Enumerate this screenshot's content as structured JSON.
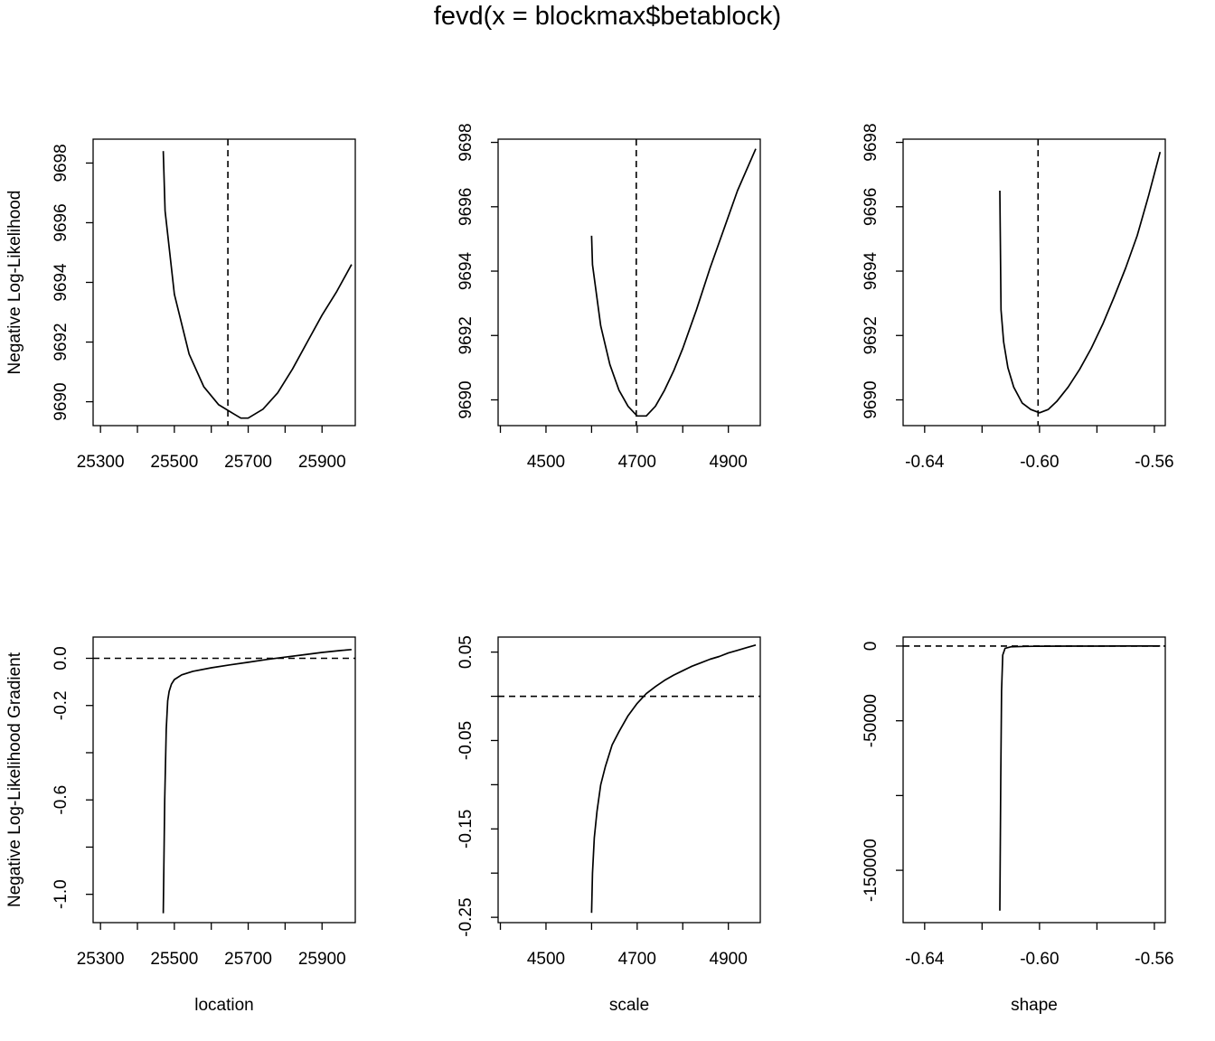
{
  "title": "fevd(x = blockmax$betablock)",
  "chart_data": [
    {
      "type": "line",
      "panel": "location-likelihood",
      "xlabel": "",
      "ylabel": "Negative Log-Likelihood",
      "xlim": [
        25280,
        25990
      ],
      "ylim": [
        9689.2,
        9698.8
      ],
      "xticks": [
        25300,
        25400,
        25500,
        25600,
        25700,
        25800,
        25900
      ],
      "xtick_labels": [
        "25300",
        "25500",
        "25700",
        "25900"
      ],
      "yticks": [
        9690,
        9692,
        9694,
        9696,
        9698
      ],
      "ytick_labels": [
        "9690",
        "9692",
        "9694",
        "9696",
        "9698"
      ],
      "series": [
        {
          "x": [
            25470,
            25475,
            25500,
            25540,
            25580,
            25620,
            25660,
            25680,
            25700,
            25740,
            25780,
            25820,
            25860,
            25900,
            25940,
            25980
          ],
          "y": [
            9698.4,
            9696.4,
            9693.6,
            9691.6,
            9690.5,
            9689.9,
            9689.6,
            9689.45,
            9689.45,
            9689.75,
            9690.3,
            9691.1,
            9692.0,
            9692.9,
            9693.7,
            9694.6
          ]
        }
      ],
      "reference": {
        "orientation": "vertical",
        "value": 25645,
        "style": "dashed"
      }
    },
    {
      "type": "line",
      "panel": "scale-likelihood",
      "xlabel": "",
      "ylabel": "",
      "xlim": [
        4395,
        4970
      ],
      "ylim": [
        9689.2,
        9698.1
      ],
      "xticks": [
        4400,
        4500,
        4600,
        4700,
        4800,
        4900
      ],
      "xtick_labels": [
        "4500",
        "4700",
        "4900"
      ],
      "yticks": [
        9690,
        9692,
        9694,
        9696,
        9698
      ],
      "ytick_labels": [
        "9690",
        "9692",
        "9694",
        "9696",
        "9698"
      ],
      "series": [
        {
          "x": [
            4600,
            4602,
            4620,
            4640,
            4660,
            4680,
            4700,
            4720,
            4740,
            4760,
            4780,
            4800,
            4830,
            4860,
            4890,
            4920,
            4960
          ],
          "y": [
            9695.1,
            9694.2,
            9692.3,
            9691.1,
            9690.3,
            9689.8,
            9689.5,
            9689.5,
            9689.8,
            9690.3,
            9690.9,
            9691.6,
            9692.8,
            9694.1,
            9695.3,
            9696.5,
            9697.8
          ]
        }
      ],
      "reference": {
        "orientation": "vertical",
        "value": 4698,
        "style": "dashed"
      }
    },
    {
      "type": "line",
      "panel": "shape-likelihood",
      "xlabel": "",
      "ylabel": "",
      "xlim": [
        -0.6475,
        -0.5562
      ],
      "ylim": [
        9689.2,
        9698.1
      ],
      "xticks": [
        -0.64,
        -0.62,
        -0.6,
        -0.58,
        -0.56
      ],
      "xtick_labels": [
        "-0.64",
        "-0.60",
        "-0.56"
      ],
      "yticks": [
        9690,
        9692,
        9694,
        9696,
        9698
      ],
      "ytick_labels": [
        "9690",
        "9692",
        "9694",
        "9696",
        "9698"
      ],
      "series": [
        {
          "x": [
            -0.6138,
            -0.6134,
            -0.6125,
            -0.611,
            -0.609,
            -0.606,
            -0.603,
            -0.6,
            -0.597,
            -0.594,
            -0.59,
            -0.586,
            -0.582,
            -0.578,
            -0.574,
            -0.57,
            -0.566,
            -0.562,
            -0.558
          ],
          "y": [
            9696.5,
            9692.8,
            9691.8,
            9691.0,
            9690.4,
            9689.9,
            9689.7,
            9689.6,
            9689.7,
            9689.95,
            9690.4,
            9690.95,
            9691.6,
            9692.35,
            9693.2,
            9694.1,
            9695.1,
            9696.35,
            9697.7
          ]
        }
      ],
      "reference": {
        "orientation": "vertical",
        "value": -0.6005,
        "style": "dashed"
      }
    },
    {
      "type": "line",
      "panel": "location-gradient",
      "xlabel": "location",
      "ylabel": "Negative Log-Likelihood Gradient",
      "xlim": [
        25280,
        25990
      ],
      "ylim": [
        -1.12,
        0.09
      ],
      "xticks": [
        25300,
        25400,
        25500,
        25600,
        25700,
        25800,
        25900
      ],
      "xtick_labels": [
        "25300",
        "25500",
        "25700",
        "25900"
      ],
      "yticks": [
        0.0,
        -0.2,
        -0.4,
        -0.6,
        -0.8,
        -1.0
      ],
      "ytick_labels": [
        "0.0",
        "-0.2",
        "-0.6",
        "-1.0"
      ],
      "series": [
        {
          "x": [
            25470,
            25474,
            25478,
            25482,
            25486,
            25492,
            25500,
            25520,
            25550,
            25600,
            25650,
            25700,
            25750,
            25800,
            25850,
            25900,
            25950,
            25980
          ],
          "y": [
            -1.08,
            -0.6,
            -0.3,
            -0.18,
            -0.14,
            -0.11,
            -0.09,
            -0.07,
            -0.055,
            -0.04,
            -0.028,
            -0.017,
            -0.005,
            0.005,
            0.015,
            0.025,
            0.033,
            0.037
          ]
        }
      ],
      "reference": {
        "orientation": "horizontal",
        "value": 0,
        "style": "dashed"
      }
    },
    {
      "type": "line",
      "panel": "scale-gradient",
      "xlabel": "scale",
      "ylabel": "",
      "xlim": [
        4395,
        4970
      ],
      "ylim": [
        -0.256,
        0.067
      ],
      "xticks": [
        4400,
        4500,
        4600,
        4700,
        4800,
        4900
      ],
      "xtick_labels": [
        "4500",
        "4700",
        "4900"
      ],
      "yticks": [
        0.05,
        0.0,
        -0.05,
        -0.1,
        -0.15,
        -0.2,
        -0.25
      ],
      "ytick_labels": [
        "0.05",
        "-0.05",
        "-0.15",
        "-0.25"
      ],
      "series": [
        {
          "x": [
            4600,
            4602,
            4606,
            4612,
            4620,
            4630,
            4645,
            4660,
            4680,
            4700,
            4720,
            4740,
            4760,
            4780,
            4800,
            4820,
            4840,
            4860,
            4880,
            4900,
            4920,
            4940,
            4960
          ],
          "y": [
            -0.245,
            -0.2,
            -0.16,
            -0.13,
            -0.1,
            -0.08,
            -0.055,
            -0.04,
            -0.022,
            -0.008,
            0.003,
            0.011,
            0.018,
            0.024,
            0.029,
            0.034,
            0.038,
            0.042,
            0.045,
            0.049,
            0.052,
            0.055,
            0.058
          ]
        }
      ],
      "reference": {
        "orientation": "horizontal",
        "value": 0,
        "style": "dashed"
      }
    },
    {
      "type": "line",
      "panel": "shape-gradient",
      "xlabel": "shape",
      "ylabel": "",
      "xlim": [
        -0.6475,
        -0.5562
      ],
      "ylim": [
        -185000,
        6000
      ],
      "xticks": [
        -0.64,
        -0.62,
        -0.6,
        -0.58,
        -0.56
      ],
      "xtick_labels": [
        "-0.64",
        "-0.60",
        "-0.56"
      ],
      "yticks": [
        0,
        -50000,
        -100000,
        -150000
      ],
      "ytick_labels": [
        "0",
        "-50000",
        "-150000"
      ],
      "series": [
        {
          "x": [
            -0.6138,
            -0.6135,
            -0.6132,
            -0.6128,
            -0.612,
            -0.61,
            -0.605,
            -0.6,
            -0.59,
            -0.58,
            -0.57,
            -0.558
          ],
          "y": [
            -177000,
            -90000,
            -30000,
            -6000,
            -1500,
            -500,
            -200,
            -100,
            -50,
            -20,
            -10,
            -5
          ]
        }
      ],
      "reference": {
        "orientation": "horizontal",
        "value": 0,
        "style": "dashed"
      }
    }
  ]
}
